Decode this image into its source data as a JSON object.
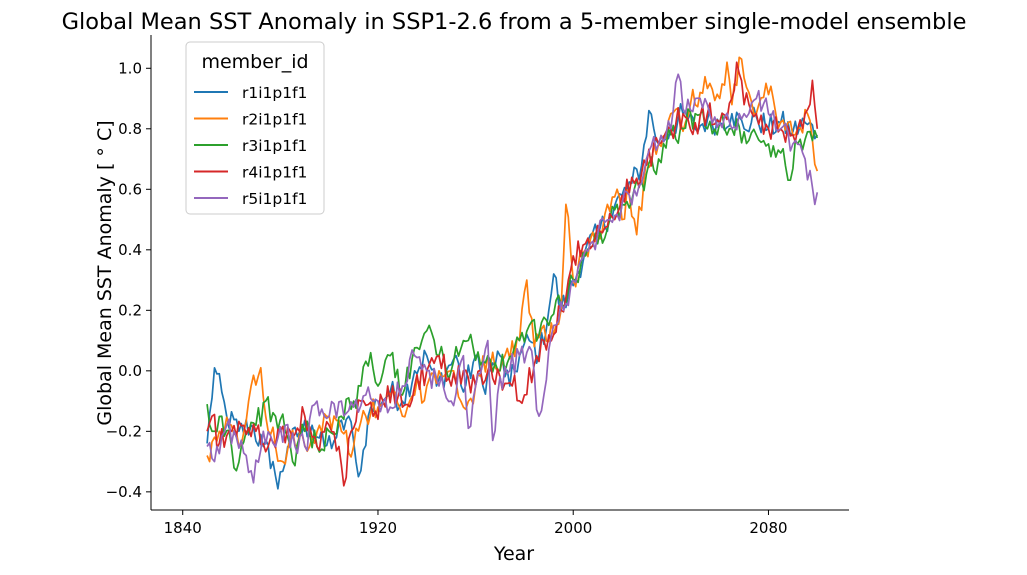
{
  "chart_data": {
    "type": "line",
    "title": "Global Mean SST Anomaly in SSP1-2.6 from a 5-member single-model ensemble",
    "xlabel": "Year",
    "ylabel": "Global Mean SST Anomaly [$^\\circ$C]",
    "ylabel_display": "Global Mean SST Anomaly [ ° C]",
    "xlim": [
      1827,
      2113
    ],
    "ylim": [
      -0.46,
      1.11
    ],
    "xticks": [
      1840,
      1920,
      2000,
      2080
    ],
    "xtick_labels": [
      "1840",
      "1920",
      "2000",
      "2080"
    ],
    "yticks": [
      -0.4,
      -0.2,
      0.0,
      0.2,
      0.4,
      0.6,
      0.8,
      1.0
    ],
    "ytick_labels": [
      "−0.4",
      "−0.2",
      "0.0",
      "0.2",
      "0.4",
      "0.6",
      "0.8",
      "1.0"
    ],
    "grid": false,
    "legend": {
      "title": "member_id",
      "placement": "top-left"
    },
    "series": [
      {
        "name": "r1i1p1f1",
        "color": "#1f77b4",
        "anchors": [
          [
            1850,
            -0.24
          ],
          [
            1853,
            0.01
          ],
          [
            1858,
            -0.15
          ],
          [
            1863,
            -0.2
          ],
          [
            1868,
            -0.18
          ],
          [
            1873,
            -0.25
          ],
          [
            1877,
            -0.3
          ],
          [
            1879,
            -0.39
          ],
          [
            1883,
            -0.25
          ],
          [
            1888,
            -0.2
          ],
          [
            1893,
            -0.18
          ],
          [
            1898,
            -0.25
          ],
          [
            1903,
            -0.22
          ],
          [
            1908,
            -0.15
          ],
          [
            1911,
            -0.3
          ],
          [
            1913,
            -0.33
          ],
          [
            1916,
            -0.15
          ],
          [
            1920,
            -0.1
          ],
          [
            1925,
            -0.07
          ],
          [
            1930,
            -0.1
          ],
          [
            1935,
            0.0
          ],
          [
            1940,
            0.05
          ],
          [
            1944,
            -0.05
          ],
          [
            1948,
            0.0
          ],
          [
            1952,
            0.05
          ],
          [
            1955,
            -0.07
          ],
          [
            1960,
            0.05
          ],
          [
            1963,
            -0.05
          ],
          [
            1966,
            0.0
          ],
          [
            1970,
            0.05
          ],
          [
            1974,
            -0.05
          ],
          [
            1978,
            0.05
          ],
          [
            1982,
            0.1
          ],
          [
            1986,
            0.05
          ],
          [
            1990,
            0.2
          ],
          [
            1992,
            0.32
          ],
          [
            1995,
            0.2
          ],
          [
            1998,
            0.25
          ],
          [
            2002,
            0.33
          ],
          [
            2005,
            0.4
          ],
          [
            2010,
            0.45
          ],
          [
            2015,
            0.52
          ],
          [
            2020,
            0.58
          ],
          [
            2024,
            0.62
          ],
          [
            2028,
            0.68
          ],
          [
            2031,
            0.86
          ],
          [
            2035,
            0.75
          ],
          [
            2040,
            0.8
          ],
          [
            2045,
            0.85
          ],
          [
            2050,
            0.8
          ],
          [
            2055,
            0.83
          ],
          [
            2060,
            0.82
          ],
          [
            2065,
            0.85
          ],
          [
            2070,
            0.8
          ],
          [
            2075,
            0.84
          ],
          [
            2080,
            0.8
          ],
          [
            2085,
            0.82
          ],
          [
            2090,
            0.79
          ],
          [
            2095,
            0.82
          ],
          [
            2100,
            0.78
          ]
        ]
      },
      {
        "name": "r2i1p1f1",
        "color": "#ff7f0e",
        "anchors": [
          [
            1850,
            -0.28
          ],
          [
            1851,
            -0.3
          ],
          [
            1855,
            -0.2
          ],
          [
            1860,
            -0.18
          ],
          [
            1863,
            -0.25
          ],
          [
            1867,
            -0.1
          ],
          [
            1872,
            0.01
          ],
          [
            1874,
            -0.15
          ],
          [
            1878,
            -0.25
          ],
          [
            1881,
            -0.3
          ],
          [
            1884,
            -0.22
          ],
          [
            1888,
            -0.2
          ],
          [
            1892,
            -0.25
          ],
          [
            1896,
            -0.18
          ],
          [
            1900,
            -0.15
          ],
          [
            1905,
            -0.2
          ],
          [
            1910,
            -0.25
          ],
          [
            1915,
            -0.15
          ],
          [
            1920,
            -0.12
          ],
          [
            1925,
            -0.08
          ],
          [
            1930,
            -0.15
          ],
          [
            1935,
            -0.08
          ],
          [
            1940,
            -0.05
          ],
          [
            1945,
            0.0
          ],
          [
            1950,
            0.0
          ],
          [
            1955,
            -0.12
          ],
          [
            1960,
            -0.05
          ],
          [
            1965,
            0.05
          ],
          [
            1970,
            0.0
          ],
          [
            1974,
            0.04
          ],
          [
            1978,
            0.1
          ],
          [
            1981,
            0.3
          ],
          [
            1984,
            0.08
          ],
          [
            1988,
            0.15
          ],
          [
            1992,
            0.12
          ],
          [
            1995,
            0.2
          ],
          [
            1997,
            0.55
          ],
          [
            2000,
            0.3
          ],
          [
            2005,
            0.4
          ],
          [
            2010,
            0.45
          ],
          [
            2014,
            0.55
          ],
          [
            2018,
            0.6
          ],
          [
            2020,
            0.5
          ],
          [
            2023,
            0.58
          ],
          [
            2026,
            0.45
          ],
          [
            2030,
            0.7
          ],
          [
            2035,
            0.75
          ],
          [
            2040,
            0.85
          ],
          [
            2044,
            0.82
          ],
          [
            2048,
            0.88
          ],
          [
            2052,
            0.92
          ],
          [
            2056,
            0.95
          ],
          [
            2060,
            0.9
          ],
          [
            2063,
            1.02
          ],
          [
            2065,
            0.88
          ],
          [
            2069,
            1.03
          ],
          [
            2072,
            0.92
          ],
          [
            2075,
            0.85
          ],
          [
            2079,
            0.95
          ],
          [
            2083,
            0.85
          ],
          [
            2088,
            0.82
          ],
          [
            2092,
            0.8
          ],
          [
            2096,
            0.85
          ],
          [
            2100,
            0.66
          ]
        ]
      },
      {
        "name": "r3i1p1f1",
        "color": "#2ca02c",
        "anchors": [
          [
            1850,
            -0.11
          ],
          [
            1852,
            -0.2
          ],
          [
            1856,
            -0.15
          ],
          [
            1860,
            -0.25
          ],
          [
            1862,
            -0.33
          ],
          [
            1866,
            -0.2
          ],
          [
            1870,
            -0.18
          ],
          [
            1874,
            -0.1
          ],
          [
            1878,
            -0.15
          ],
          [
            1882,
            -0.2
          ],
          [
            1885,
            -0.3
          ],
          [
            1890,
            -0.2
          ],
          [
            1895,
            -0.25
          ],
          [
            1900,
            -0.2
          ],
          [
            1905,
            -0.15
          ],
          [
            1910,
            -0.1
          ],
          [
            1913,
            -0.05
          ],
          [
            1917,
            0.06
          ],
          [
            1920,
            -0.05
          ],
          [
            1925,
            0.05
          ],
          [
            1930,
            -0.08
          ],
          [
            1934,
            0.04
          ],
          [
            1938,
            0.1
          ],
          [
            1941,
            0.15
          ],
          [
            1945,
            0.05
          ],
          [
            1950,
            0.0
          ],
          [
            1955,
            0.1
          ],
          [
            1958,
            0.12
          ],
          [
            1962,
            0.02
          ],
          [
            1965,
            0.05
          ],
          [
            1970,
            0.0
          ],
          [
            1975,
            0.05
          ],
          [
            1978,
            0.1
          ],
          [
            1982,
            0.15
          ],
          [
            1986,
            0.12
          ],
          [
            1990,
            0.15
          ],
          [
            1994,
            0.25
          ],
          [
            1997,
            0.22
          ],
          [
            2000,
            0.3
          ],
          [
            2005,
            0.38
          ],
          [
            2010,
            0.42
          ],
          [
            2015,
            0.5
          ],
          [
            2020,
            0.55
          ],
          [
            2025,
            0.6
          ],
          [
            2030,
            0.65
          ],
          [
            2035,
            0.7
          ],
          [
            2040,
            0.78
          ],
          [
            2045,
            0.8
          ],
          [
            2050,
            0.85
          ],
          [
            2055,
            0.8
          ],
          [
            2060,
            0.82
          ],
          [
            2065,
            0.8
          ],
          [
            2070,
            0.79
          ],
          [
            2075,
            0.78
          ],
          [
            2080,
            0.75
          ],
          [
            2085,
            0.72
          ],
          [
            2088,
            0.63
          ],
          [
            2092,
            0.75
          ],
          [
            2096,
            0.79
          ],
          [
            2100,
            0.77
          ]
        ]
      },
      {
        "name": "r4i1p1f1",
        "color": "#d62728",
        "anchors": [
          [
            1850,
            -0.2
          ],
          [
            1852,
            -0.15
          ],
          [
            1855,
            -0.24
          ],
          [
            1860,
            -0.2
          ],
          [
            1865,
            -0.18
          ],
          [
            1870,
            -0.2
          ],
          [
            1875,
            -0.25
          ],
          [
            1880,
            -0.2
          ],
          [
            1885,
            -0.22
          ],
          [
            1890,
            -0.15
          ],
          [
            1895,
            -0.25
          ],
          [
            1900,
            -0.18
          ],
          [
            1904,
            -0.25
          ],
          [
            1906,
            -0.38
          ],
          [
            1909,
            -0.2
          ],
          [
            1913,
            -0.1
          ],
          [
            1918,
            -0.15
          ],
          [
            1922,
            -0.1
          ],
          [
            1926,
            -0.05
          ],
          [
            1930,
            -0.12
          ],
          [
            1935,
            -0.05
          ],
          [
            1940,
            0.0
          ],
          [
            1945,
            0.05
          ],
          [
            1950,
            -0.05
          ],
          [
            1955,
            0.0
          ],
          [
            1960,
            -0.05
          ],
          [
            1965,
            0.0
          ],
          [
            1970,
            -0.02
          ],
          [
            1975,
            -0.05
          ],
          [
            1980,
            -0.08
          ],
          [
            1984,
            0.02
          ],
          [
            1988,
            0.1
          ],
          [
            1992,
            0.12
          ],
          [
            1995,
            0.2
          ],
          [
            1998,
            0.3
          ],
          [
            2000,
            0.38
          ],
          [
            2005,
            0.42
          ],
          [
            2010,
            0.48
          ],
          [
            2015,
            0.52
          ],
          [
            2020,
            0.58
          ],
          [
            2025,
            0.62
          ],
          [
            2030,
            0.68
          ],
          [
            2035,
            0.75
          ],
          [
            2040,
            0.8
          ],
          [
            2045,
            0.85
          ],
          [
            2050,
            0.82
          ],
          [
            2055,
            0.85
          ],
          [
            2060,
            0.82
          ],
          [
            2065,
            0.9
          ],
          [
            2067,
            1.02
          ],
          [
            2070,
            0.88
          ],
          [
            2075,
            0.85
          ],
          [
            2080,
            0.8
          ],
          [
            2085,
            0.8
          ],
          [
            2090,
            0.78
          ],
          [
            2095,
            0.85
          ],
          [
            2098,
            0.96
          ],
          [
            2100,
            0.8
          ]
        ]
      },
      {
        "name": "r5i1p1f1",
        "color": "#9467bd",
        "anchors": [
          [
            1850,
            -0.25
          ],
          [
            1853,
            -0.3
          ],
          [
            1858,
            -0.18
          ],
          [
            1862,
            -0.22
          ],
          [
            1866,
            -0.28
          ],
          [
            1869,
            -0.37
          ],
          [
            1873,
            -0.2
          ],
          [
            1878,
            -0.25
          ],
          [
            1882,
            -0.18
          ],
          [
            1886,
            -0.25
          ],
          [
            1890,
            -0.25
          ],
          [
            1895,
            -0.1
          ],
          [
            1900,
            -0.15
          ],
          [
            1905,
            -0.1
          ],
          [
            1910,
            -0.12
          ],
          [
            1915,
            -0.08
          ],
          [
            1920,
            -0.1
          ],
          [
            1925,
            -0.12
          ],
          [
            1930,
            -0.05
          ],
          [
            1935,
            0.05
          ],
          [
            1940,
            0.0
          ],
          [
            1945,
            -0.05
          ],
          [
            1950,
            -0.1
          ],
          [
            1955,
            0.05
          ],
          [
            1957,
            -0.19
          ],
          [
            1960,
            -0.05
          ],
          [
            1965,
            0.1
          ],
          [
            1967,
            -0.23
          ],
          [
            1970,
            -0.02
          ],
          [
            1974,
            0.0
          ],
          [
            1978,
            0.05
          ],
          [
            1982,
            0.08
          ],
          [
            1986,
            -0.15
          ],
          [
            1988,
            -0.08
          ],
          [
            1992,
            0.15
          ],
          [
            1996,
            0.2
          ],
          [
            2000,
            0.3
          ],
          [
            2005,
            0.4
          ],
          [
            2010,
            0.45
          ],
          [
            2015,
            0.5
          ],
          [
            2020,
            0.55
          ],
          [
            2025,
            0.6
          ],
          [
            2030,
            0.7
          ],
          [
            2035,
            0.75
          ],
          [
            2040,
            0.8
          ],
          [
            2043,
            0.98
          ],
          [
            2046,
            0.85
          ],
          [
            2050,
            0.9
          ],
          [
            2055,
            0.88
          ],
          [
            2060,
            0.82
          ],
          [
            2065,
            0.8
          ],
          [
            2070,
            0.85
          ],
          [
            2075,
            0.9
          ],
          [
            2080,
            0.85
          ],
          [
            2085,
            0.8
          ],
          [
            2090,
            0.75
          ],
          [
            2095,
            0.7
          ],
          [
            2099,
            0.55
          ],
          [
            2100,
            0.59
          ]
        ]
      }
    ]
  }
}
